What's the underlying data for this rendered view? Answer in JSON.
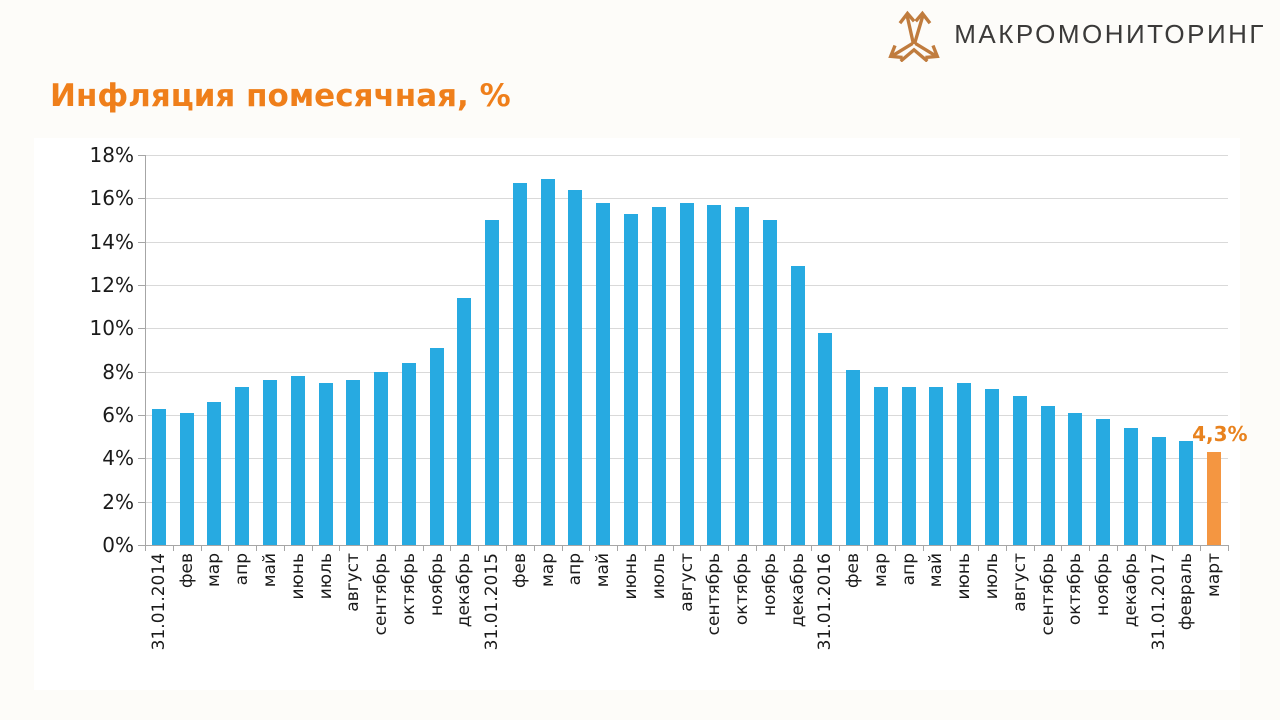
{
  "header": {
    "logo_text": "МАКРОМОНИТОРИНГ"
  },
  "page_title": "Инфляция помесячная, %",
  "colors": {
    "title": "#ef7f1b",
    "logo_icon": "#c07c3e",
    "logo_text": "#3b3a39",
    "axis": "#a6a6a6",
    "gridline": "#d9d9d9"
  },
  "chart_data": {
    "type": "bar",
    "title": "Инфляция помесячная, %",
    "categories": [
      "31.01.2014",
      "фев",
      "мар",
      "апр",
      "май",
      "июнь",
      "июль",
      "август",
      "сентябрь",
      "октябрь",
      "ноябрь",
      "декабрь",
      "31.01.2015",
      "фев",
      "мар",
      "апр",
      "май",
      "июнь",
      "июль",
      "август",
      "сентябрь",
      "октябрь",
      "ноябрь",
      "декабрь",
      "31.01.2016",
      "фев",
      "мар",
      "апр",
      "май",
      "июнь",
      "июль",
      "август",
      "сентябрь",
      "октябрь",
      "ноябрь",
      "декабрь",
      "31.01.2017",
      "февраль",
      "март"
    ],
    "values": [
      6.3,
      6.1,
      6.6,
      7.3,
      7.6,
      7.8,
      7.5,
      7.6,
      8.0,
      8.4,
      9.1,
      11.4,
      15.0,
      16.7,
      16.9,
      16.4,
      15.8,
      15.3,
      15.6,
      15.8,
      15.7,
      15.6,
      15.0,
      12.9,
      9.8,
      8.1,
      7.3,
      7.3,
      7.3,
      7.5,
      7.2,
      6.9,
      6.4,
      6.1,
      5.8,
      5.4,
      5.0,
      4.8,
      4.3
    ],
    "ylim": [
      0,
      18
    ],
    "ytick_step": 2,
    "ytick_labels": [
      "0%",
      "2%",
      "4%",
      "6%",
      "8%",
      "10%",
      "12%",
      "14%",
      "16%",
      "18%"
    ],
    "grid": true,
    "legend": false,
    "bar_color": "#27aae1",
    "highlight_index": 38,
    "highlight_color": "#f49641",
    "annotation": {
      "index": 38,
      "text": "4,3%",
      "color": "#e8821e"
    }
  }
}
